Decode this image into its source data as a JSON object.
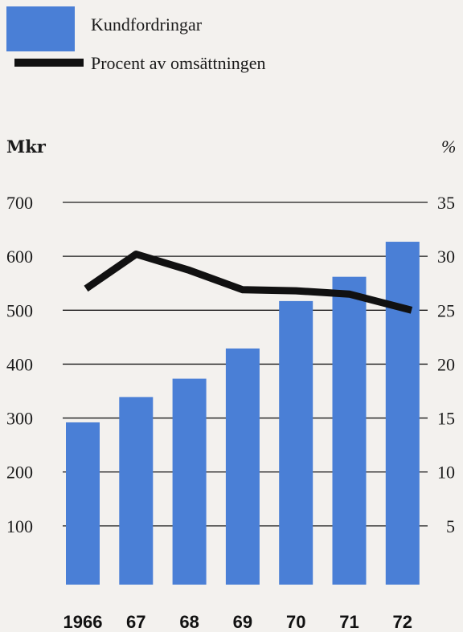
{
  "legend": {
    "bars_label": "Kundfordringar",
    "line_label": "Procent av omsättningen"
  },
  "axes": {
    "left_title": "Mkr",
    "right_title": "%"
  },
  "colors": {
    "bar": "#4a7fd6",
    "line": "#111111",
    "grid": "#1a1a1a",
    "background": "#f3f1ee"
  },
  "chart_data": {
    "type": "bar",
    "categories": [
      "1966",
      "67",
      "68",
      "69",
      "70",
      "71",
      "72"
    ],
    "series": [
      {
        "name": "Kundfordringar",
        "type": "bar",
        "axis": "left",
        "values": [
          292,
          339,
          373,
          429,
          517,
          562,
          627
        ]
      },
      {
        "name": "Procent av omsättningen",
        "type": "line",
        "axis": "right",
        "values": [
          27.0,
          30.2,
          28.7,
          26.9,
          26.8,
          26.5,
          25.0
        ]
      }
    ],
    "left_axis": {
      "label": "Mkr",
      "ticks": [
        100,
        200,
        300,
        400,
        500,
        600,
        700
      ],
      "ylim": [
        0,
        700
      ]
    },
    "right_axis": {
      "label": "%",
      "ticks": [
        "5",
        "10",
        "15",
        "20",
        "25",
        "30",
        "35"
      ],
      "ylim": [
        0,
        35
      ]
    },
    "grid": true,
    "legend_position": "top-left"
  }
}
